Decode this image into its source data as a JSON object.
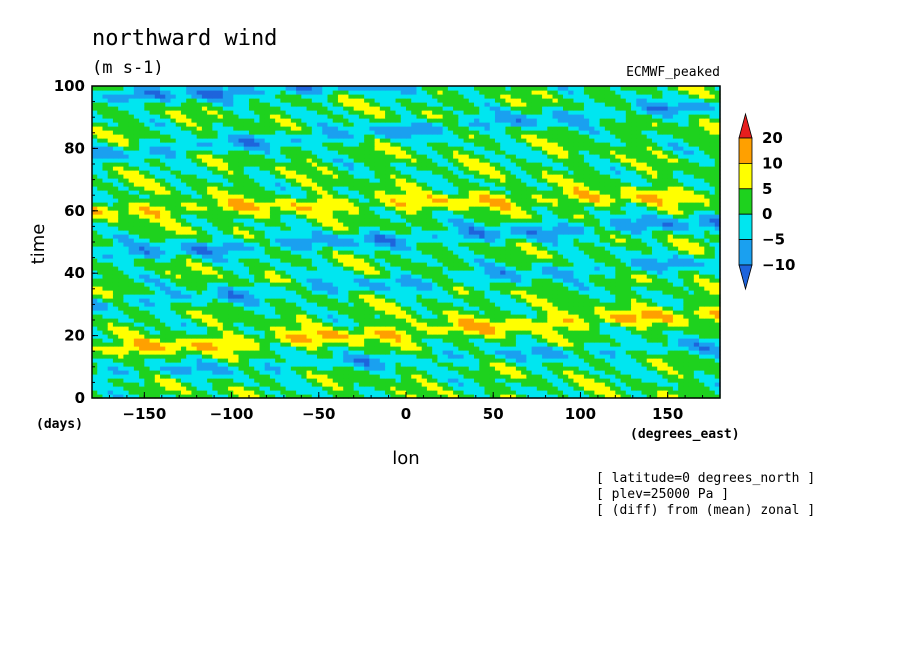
{
  "title": "northward wind",
  "units": "(m s-1)",
  "model": "ECMWF_peaked",
  "notes": [
    "[ latitude=0 degrees_north ]",
    "[ plev=25000 Pa ]",
    "[ (diff) from (mean) zonal ]"
  ],
  "chart_data": {
    "type": "heatmap",
    "title": "northward wind",
    "xlabel": "lon",
    "ylabel": "time",
    "x_units": "(degrees_east)",
    "y_units": "(days)",
    "xlim": [
      -180,
      180
    ],
    "ylim": [
      0,
      100
    ],
    "x_ticks": [
      -150,
      -100,
      -50,
      0,
      50,
      100,
      150
    ],
    "y_ticks": [
      0,
      20,
      40,
      60,
      80,
      100
    ],
    "colorbar": {
      "levels": [
        -10,
        -5,
        0,
        5,
        10,
        20
      ],
      "labels": [
        "20",
        "10",
        "5",
        "0",
        "-5",
        "-10"
      ],
      "colors": [
        "#1e64dc",
        "#1aa0f0",
        "#00e6f0",
        "#1ed21e",
        "#ffff00",
        "#ffa000",
        "#e61e1e"
      ]
    },
    "bands": [
      {
        "t_at_lon_minus180": 96,
        "slope_days_per_deg": 0.03,
        "value": -9
      },
      {
        "t_at_lon_minus180": 78,
        "slope_days_per_deg": 0.045,
        "value": -7
      },
      {
        "t_at_lon_minus180": 46,
        "slope_days_per_deg": 0.03,
        "value": -8
      },
      {
        "t_at_lon_minus180": 30,
        "slope_days_per_deg": 0.04,
        "value": -6
      },
      {
        "t_at_lon_minus180": 8,
        "slope_days_per_deg": 0.025,
        "value": -5
      },
      {
        "t_at_lon_minus180": 60,
        "slope_days_per_deg": 0.015,
        "value": 6
      },
      {
        "t_at_lon_minus180": 15,
        "slope_days_per_deg": 0.035,
        "value": 7
      }
    ]
  }
}
